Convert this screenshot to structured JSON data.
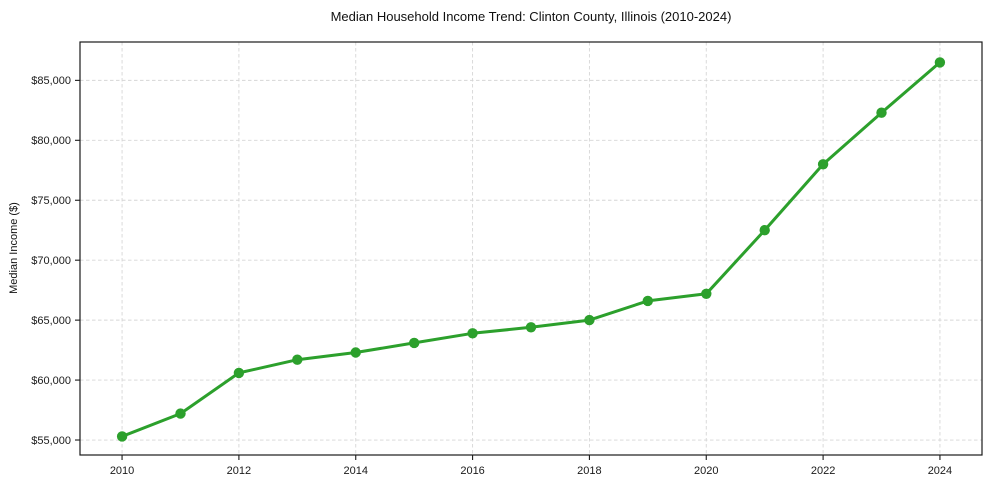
{
  "chart_data": {
    "type": "line",
    "title": "Median Household Income Trend: Clinton County, Illinois (2010-2024)",
    "xlabel": "",
    "ylabel": "Median Income ($)",
    "series": [
      {
        "name": "Median Household Income",
        "x": [
          2010,
          2011,
          2012,
          2013,
          2014,
          2015,
          2016,
          2017,
          2018,
          2019,
          2020,
          2021,
          2022,
          2023,
          2024
        ],
        "values": [
          55300,
          57200,
          60600,
          61700,
          62300,
          63100,
          63900,
          64400,
          65000,
          66600,
          67200,
          72500,
          78000,
          82300,
          86500
        ]
      }
    ],
    "x_ticks": [
      2010,
      2012,
      2014,
      2016,
      2018,
      2020,
      2022,
      2024
    ],
    "x_tick_labels": [
      "2010",
      "2012",
      "2014",
      "2016",
      "2018",
      "2020",
      "2022",
      "2024"
    ],
    "y_ticks": [
      55000,
      60000,
      65000,
      70000,
      75000,
      80000,
      85000
    ],
    "y_tick_labels": [
      "$55,000",
      "$60,000",
      "$65,000",
      "$70,000",
      "$75,000",
      "$80,000",
      "$85,000"
    ],
    "xlim": [
      2009.28,
      2024.72
    ],
    "ylim": [
      53750,
      88200
    ],
    "grid": true,
    "grid_style": "dashed",
    "legend": "none",
    "colors": {
      "line": "#2ca02c",
      "marker": "#2ca02c",
      "grid": "#d6d6d6",
      "axis": "#1a1a1a",
      "background": "#ffffff",
      "text": "#111111"
    }
  }
}
